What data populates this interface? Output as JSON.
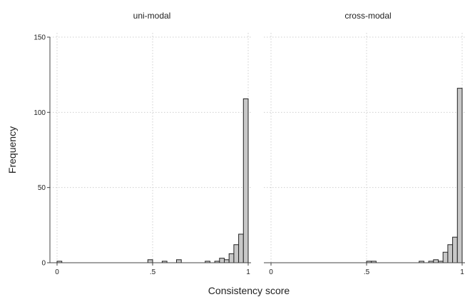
{
  "chart_data": {
    "type": "bar",
    "xlabel": "Consistency score",
    "ylabel": "Frequency",
    "xlim": [
      0,
      1
    ],
    "ylim": [
      0,
      150
    ],
    "x_ticks": [
      {
        "value": 0,
        "label": "0"
      },
      {
        "value": 0.5,
        "label": ".5"
      },
      {
        "value": 1,
        "label": "1"
      }
    ],
    "y_ticks": [
      {
        "value": 0,
        "label": "0"
      },
      {
        "value": 50,
        "label": "50"
      },
      {
        "value": 100,
        "label": "100"
      },
      {
        "value": 150,
        "label": "150"
      }
    ],
    "grid": true,
    "bin_width": 0.025,
    "panels": [
      {
        "title": "uni-modal",
        "bins": [
          {
            "start": 0.0,
            "count": 1
          },
          {
            "start": 0.475,
            "count": 2
          },
          {
            "start": 0.55,
            "count": 1
          },
          {
            "start": 0.625,
            "count": 2
          },
          {
            "start": 0.775,
            "count": 1
          },
          {
            "start": 0.825,
            "count": 1
          },
          {
            "start": 0.85,
            "count": 3
          },
          {
            "start": 0.875,
            "count": 2
          },
          {
            "start": 0.9,
            "count": 6
          },
          {
            "start": 0.925,
            "count": 12
          },
          {
            "start": 0.95,
            "count": 19
          },
          {
            "start": 0.975,
            "count": 109
          }
        ]
      },
      {
        "title": "cross-modal",
        "bins": [
          {
            "start": 0.5,
            "count": 1
          },
          {
            "start": 0.525,
            "count": 1
          },
          {
            "start": 0.775,
            "count": 1
          },
          {
            "start": 0.825,
            "count": 1
          },
          {
            "start": 0.85,
            "count": 2
          },
          {
            "start": 0.875,
            "count": 1
          },
          {
            "start": 0.9,
            "count": 7
          },
          {
            "start": 0.925,
            "count": 12
          },
          {
            "start": 0.95,
            "count": 17
          },
          {
            "start": 0.975,
            "count": 116
          }
        ]
      }
    ]
  }
}
